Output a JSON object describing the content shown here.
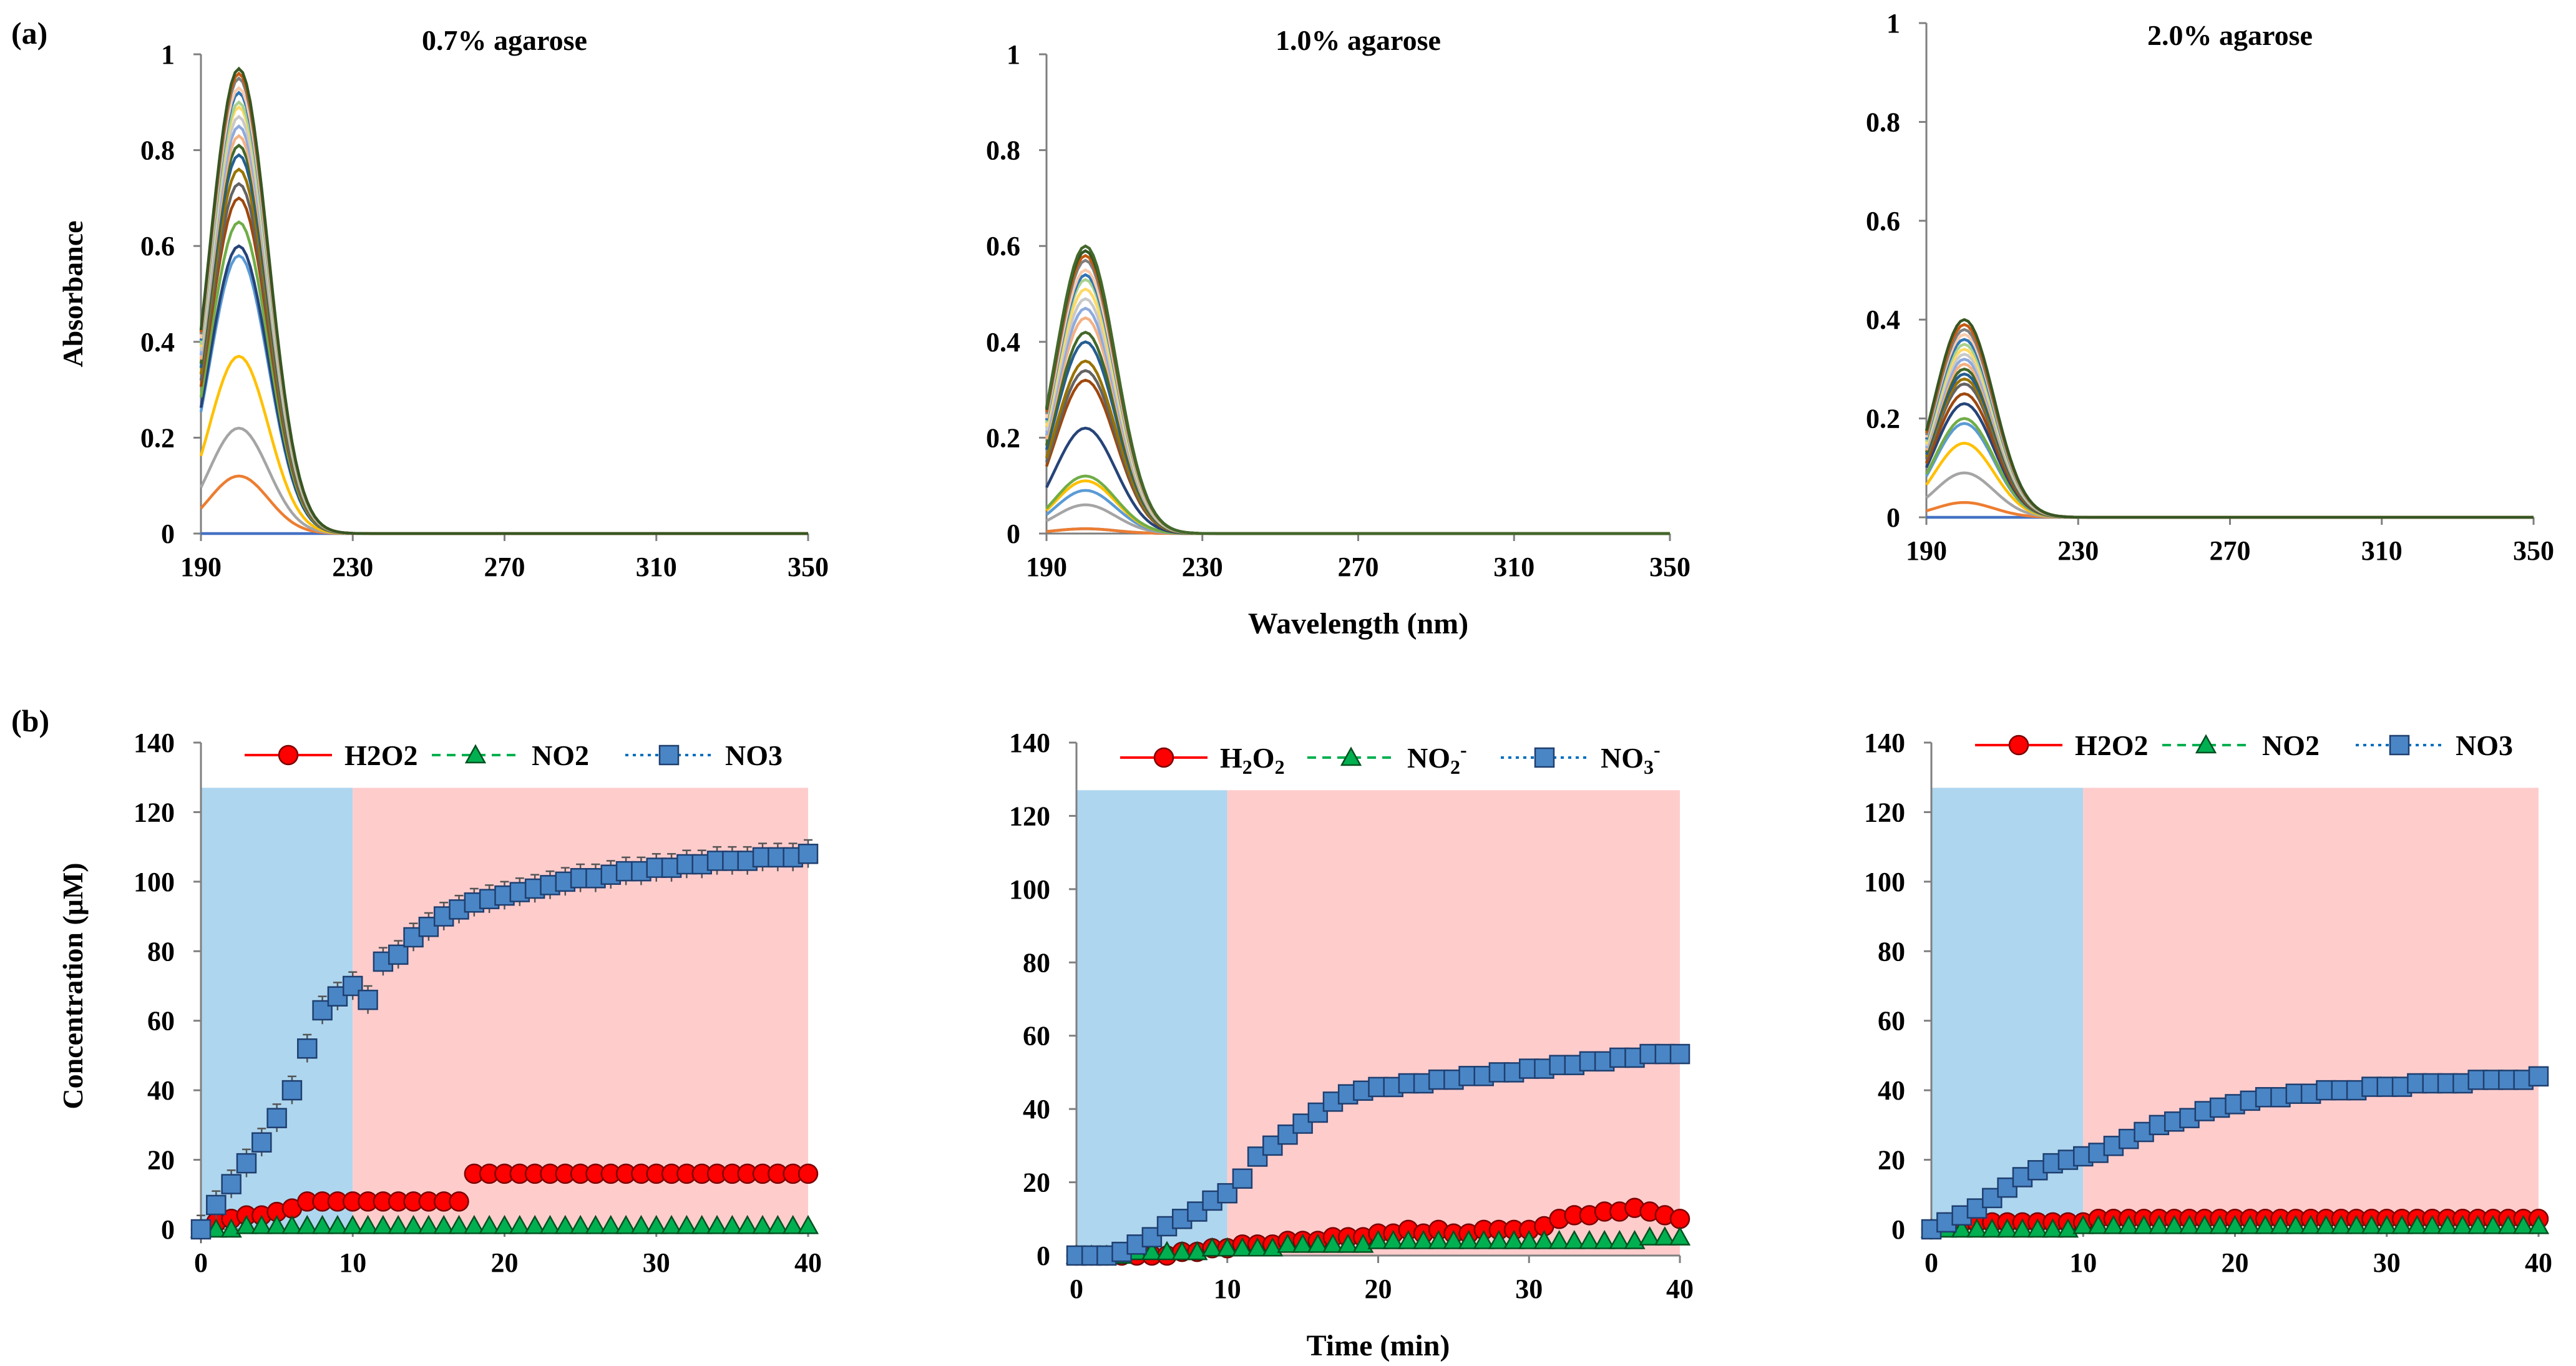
{
  "figure": {
    "panel_a_label": "(a)",
    "panel_b_label": "(b)"
  },
  "chart_data": [
    {
      "id": "a1",
      "type": "line",
      "title": "0.7% agarose",
      "ylabel": "Absorbance",
      "xlabel": "",
      "xlim": [
        190,
        350
      ],
      "ylim": [
        0,
        1
      ],
      "xticks": [
        190,
        230,
        270,
        310,
        350
      ],
      "yticks": [
        0,
        0.2,
        0.4,
        0.6,
        0.8,
        1
      ],
      "peak_wavelength": 200,
      "end_wavelength": 240,
      "peaks": [
        0,
        0.12,
        0.22,
        0.37,
        0.58,
        0.6,
        0.65,
        0.7,
        0.73,
        0.76,
        0.79,
        0.81,
        0.83,
        0.85,
        0.87,
        0.89,
        0.9,
        0.92,
        0.93,
        0.95,
        0.96,
        0.97
      ],
      "series_colors": [
        "#4472C4",
        "#ED7D31",
        "#A5A5A5",
        "#FFC000",
        "#5B9BD5",
        "#264478",
        "#70AD47",
        "#9E480E",
        "#636363",
        "#997300",
        "#255E91",
        "#43682B",
        "#F4B183",
        "#8FAADC",
        "#C9C9C9",
        "#FFD966",
        "#A9D18E",
        "#2E75B6",
        "#F8CBAD",
        "#7F7F7F",
        "#C55A11",
        "#375623"
      ]
    },
    {
      "id": "a2",
      "type": "line",
      "title": "1.0% agarose",
      "ylabel": "",
      "xlabel": "Wavelength (nm)",
      "xlim": [
        190,
        350
      ],
      "ylim": [
        0,
        1
      ],
      "xticks": [
        190,
        230,
        270,
        310,
        350
      ],
      "yticks": [
        0,
        0.2,
        0.4,
        0.6,
        0.8,
        1
      ],
      "peak_wavelength": 200,
      "end_wavelength": 240,
      "peaks": [
        0.01,
        0.01,
        0.06,
        0.09,
        0.11,
        0.12,
        0.22,
        0.32,
        0.34,
        0.36,
        0.4,
        0.42,
        0.45,
        0.47,
        0.49,
        0.51,
        0.53,
        0.54,
        0.55,
        0.57,
        0.58,
        0.59,
        0.6
      ],
      "series_colors": [
        "#4472C4",
        "#ED7D31",
        "#A5A5A5",
        "#5B9BD5",
        "#FFC000",
        "#70AD47",
        "#264478",
        "#9E480E",
        "#636363",
        "#997300",
        "#255E91",
        "#43682B",
        "#F4B183",
        "#8FAADC",
        "#C9C9C9",
        "#FFD966",
        "#A9D18E",
        "#2E75B6",
        "#F8CBAD",
        "#7F7F7F",
        "#C55A11",
        "#375623",
        "#43682B"
      ]
    },
    {
      "id": "a3",
      "type": "line",
      "title": "2.0% agarose",
      "ylabel": "",
      "xlabel": "",
      "xlim": [
        190,
        350
      ],
      "ylim": [
        0,
        1
      ],
      "xticks": [
        190,
        230,
        270,
        310,
        350
      ],
      "yticks": [
        0,
        0.2,
        0.4,
        0.6,
        0.8,
        1
      ],
      "peak_wavelength": 200,
      "end_wavelength": 240,
      "peaks": [
        0,
        0.03,
        0.09,
        0.15,
        0.19,
        0.2,
        0.23,
        0.25,
        0.27,
        0.28,
        0.29,
        0.3,
        0.31,
        0.32,
        0.33,
        0.34,
        0.35,
        0.36,
        0.37,
        0.38,
        0.39,
        0.4
      ],
      "series_colors": [
        "#4472C4",
        "#ED7D31",
        "#A5A5A5",
        "#FFC000",
        "#5B9BD5",
        "#70AD47",
        "#264478",
        "#9E480E",
        "#636363",
        "#997300",
        "#255E91",
        "#43682B",
        "#F4B183",
        "#8FAADC",
        "#C9C9C9",
        "#FFD966",
        "#A9D18E",
        "#2E75B6",
        "#F8CBAD",
        "#7F7F7F",
        "#C55A11",
        "#375623"
      ]
    },
    {
      "id": "b1",
      "type": "scatter",
      "title": "",
      "ylabel": "Concentration (μM)",
      "xlabel": "",
      "xlim": [
        0,
        40
      ],
      "ylim": [
        0,
        140
      ],
      "xticks": [
        0,
        10,
        20,
        30,
        40
      ],
      "yticks": [
        0,
        20,
        40,
        60,
        80,
        100,
        120,
        140
      ],
      "shade_top": 127,
      "phase1": [
        0,
        10
      ],
      "phase2": [
        10,
        40
      ],
      "phase1_color": "#AED6EF",
      "phase2_color": "#FFCCCC",
      "legend": [
        {
          "label": "H2O2",
          "sub": "",
          "sup": "",
          "marker": "circle",
          "color": "#FF0000",
          "dash": "solid"
        },
        {
          "label": "NO2",
          "sub": "",
          "sup": "",
          "marker": "triangle",
          "color": "#00B050",
          "dash": "dashed"
        },
        {
          "label": "NO3",
          "sub": "",
          "sup": "",
          "marker": "square",
          "color": "#0070C0",
          "dash": "dotted"
        }
      ],
      "x": [
        0,
        1,
        2,
        3,
        4,
        5,
        6,
        7,
        8,
        9,
        10,
        11,
        12,
        13,
        14,
        15,
        16,
        17,
        18,
        19,
        20,
        21,
        22,
        23,
        24,
        25,
        26,
        27,
        28,
        29,
        30,
        31,
        32,
        33,
        34,
        35,
        36,
        37,
        38,
        39,
        40
      ],
      "series": [
        {
          "name": "H2O2",
          "marker": "circle",
          "fill": "#FF0000",
          "values": [
            0,
            2,
            3,
            4,
            4,
            5,
            6,
            8,
            8,
            8,
            8,
            8,
            8,
            8,
            8,
            8,
            8,
            8,
            16,
            16,
            16,
            16,
            16,
            16,
            16,
            16,
            16,
            16,
            16,
            16,
            16,
            16,
            16,
            16,
            16,
            16,
            16,
            16,
            16,
            16,
            16
          ]
        },
        {
          "name": "NO2",
          "marker": "triangle",
          "fill": "#00B050",
          "values": [
            0,
            0,
            0,
            1,
            1,
            1,
            1,
            1,
            1,
            1,
            1,
            1,
            1,
            1,
            1,
            1,
            1,
            1,
            1,
            1,
            1,
            1,
            1,
            1,
            1,
            1,
            1,
            1,
            1,
            1,
            1,
            1,
            1,
            1,
            1,
            1,
            1,
            1,
            1,
            1,
            1
          ]
        },
        {
          "name": "NO3",
          "marker": "square",
          "fill": "#4A86C6",
          "errorbars": true,
          "values": [
            0,
            7,
            13,
            19,
            25,
            32,
            40,
            52,
            63,
            67,
            70,
            66,
            77,
            79,
            84,
            87,
            90,
            92,
            94,
            95,
            96,
            97,
            98,
            99,
            100,
            101,
            101,
            102,
            103,
            103,
            104,
            104,
            105,
            105,
            106,
            106,
            106,
            107,
            107,
            107,
            108
          ]
        }
      ]
    },
    {
      "id": "b2",
      "type": "scatter",
      "title": "",
      "ylabel": "",
      "xlabel": "Time (min)",
      "xlim": [
        0,
        40
      ],
      "ylim": [
        0,
        140
      ],
      "xticks": [
        0,
        10,
        20,
        30,
        40
      ],
      "yticks": [
        0,
        20,
        40,
        60,
        80,
        100,
        120,
        140
      ],
      "shade_top": 127,
      "phase1": [
        0,
        10
      ],
      "phase2": [
        10,
        40
      ],
      "phase1_color": "#AED6EF",
      "phase2_color": "#FFCCCC",
      "legend": [
        {
          "label": "H",
          "sub": "2",
          "label2": "O",
          "sub2": "2",
          "sup": "",
          "marker": "circle",
          "color": "#FF0000",
          "dash": "solid"
        },
        {
          "label": "NO",
          "sub": "2",
          "label2": "",
          "sub2": "",
          "sup": "-",
          "marker": "triangle",
          "color": "#00B050",
          "dash": "dashed"
        },
        {
          "label": "NO",
          "sub": "3",
          "label2": "",
          "sub2": "",
          "sup": "-",
          "marker": "square",
          "color": "#0070C0",
          "dash": "dotted"
        }
      ],
      "x": [
        0,
        1,
        2,
        3,
        4,
        5,
        6,
        7,
        8,
        9,
        10,
        11,
        12,
        13,
        14,
        15,
        16,
        17,
        18,
        19,
        20,
        21,
        22,
        23,
        24,
        25,
        26,
        27,
        28,
        29,
        30,
        31,
        32,
        33,
        34,
        35,
        36,
        37,
        38,
        39,
        40
      ],
      "series": [
        {
          "name": "H2O2",
          "marker": "circle",
          "fill": "#FF0000",
          "values": [
            0,
            0,
            0,
            0,
            0,
            0,
            0,
            1,
            1,
            2,
            2,
            3,
            3,
            3,
            4,
            4,
            4,
            5,
            5,
            5,
            6,
            6,
            7,
            6,
            7,
            6,
            6,
            7,
            7,
            7,
            7,
            8,
            10,
            11,
            11,
            12,
            12,
            13,
            12,
            11,
            10
          ]
        },
        {
          "name": "NO2",
          "marker": "triangle",
          "fill": "#00B050",
          "values": [
            0,
            0,
            0,
            0,
            1,
            1,
            1,
            1,
            1,
            2,
            2,
            2,
            2,
            2,
            3,
            3,
            3,
            3,
            3,
            3,
            4,
            4,
            4,
            4,
            4,
            4,
            4,
            4,
            4,
            4,
            4,
            4,
            4,
            4,
            4,
            4,
            4,
            4,
            5,
            5,
            5
          ]
        },
        {
          "name": "NO3",
          "marker": "square",
          "fill": "#4A86C6",
          "values": [
            0,
            0,
            0,
            1,
            3,
            5,
            8,
            10,
            12,
            15,
            17,
            21,
            27,
            30,
            33,
            36,
            39,
            42,
            44,
            45,
            46,
            46,
            47,
            47,
            48,
            48,
            49,
            49,
            50,
            50,
            51,
            51,
            52,
            52,
            53,
            53,
            54,
            54,
            55,
            55,
            55
          ]
        }
      ]
    },
    {
      "id": "b3",
      "type": "scatter",
      "title": "",
      "ylabel": "",
      "xlabel": "",
      "xlim": [
        0,
        40
      ],
      "ylim": [
        0,
        140
      ],
      "xticks": [
        0,
        10,
        20,
        30,
        40
      ],
      "yticks": [
        0,
        20,
        40,
        60,
        80,
        100,
        120,
        140
      ],
      "shade_top": 127,
      "phase1": [
        0,
        10
      ],
      "phase2": [
        10,
        40
      ],
      "phase1_color": "#AED6EF",
      "phase2_color": "#FFCCCC",
      "legend": [
        {
          "label": "H2O2",
          "sub": "",
          "sup": "",
          "marker": "circle",
          "color": "#FF0000",
          "dash": "solid"
        },
        {
          "label": "NO2",
          "sub": "",
          "sup": "",
          "marker": "triangle",
          "color": "#00B050",
          "dash": "dashed"
        },
        {
          "label": "NO3",
          "sub": "",
          "sup": "",
          "marker": "square",
          "color": "#0070C0",
          "dash": "dotted"
        }
      ],
      "x": [
        0,
        1,
        2,
        3,
        4,
        5,
        6,
        7,
        8,
        9,
        10,
        11,
        12,
        13,
        14,
        15,
        16,
        17,
        18,
        19,
        20,
        21,
        22,
        23,
        24,
        25,
        26,
        27,
        28,
        29,
        30,
        31,
        32,
        33,
        34,
        35,
        36,
        37,
        38,
        39,
        40
      ],
      "series": [
        {
          "name": "H2O2",
          "marker": "circle",
          "fill": "#FF0000",
          "values": [
            0,
            2,
            2,
            2,
            2,
            2,
            2,
            2,
            2,
            2,
            2,
            3,
            3,
            3,
            3,
            3,
            3,
            3,
            3,
            3,
            3,
            3,
            3,
            3,
            3,
            3,
            3,
            3,
            3,
            3,
            3,
            3,
            3,
            3,
            3,
            3,
            3,
            3,
            3,
            3,
            3
          ]
        },
        {
          "name": "NO2",
          "marker": "triangle",
          "fill": "#00B050",
          "values": [
            0,
            0,
            0,
            0,
            0,
            0,
            0,
            0,
            0,
            0,
            1,
            1,
            1,
            1,
            1,
            1,
            1,
            1,
            1,
            1,
            1,
            1,
            1,
            1,
            1,
            1,
            1,
            1,
            1,
            1,
            1,
            1,
            1,
            1,
            1,
            1,
            1,
            1,
            1,
            1,
            1
          ]
        },
        {
          "name": "NO3",
          "marker": "square",
          "fill": "#4A86C6",
          "values": [
            0,
            2,
            4,
            6,
            9,
            12,
            15,
            17,
            19,
            20,
            21,
            22,
            24,
            26,
            28,
            30,
            31,
            32,
            34,
            35,
            36,
            37,
            38,
            38,
            39,
            39,
            40,
            40,
            40,
            41,
            41,
            41,
            42,
            42,
            42,
            42,
            43,
            43,
            43,
            43,
            44
          ]
        }
      ]
    }
  ]
}
